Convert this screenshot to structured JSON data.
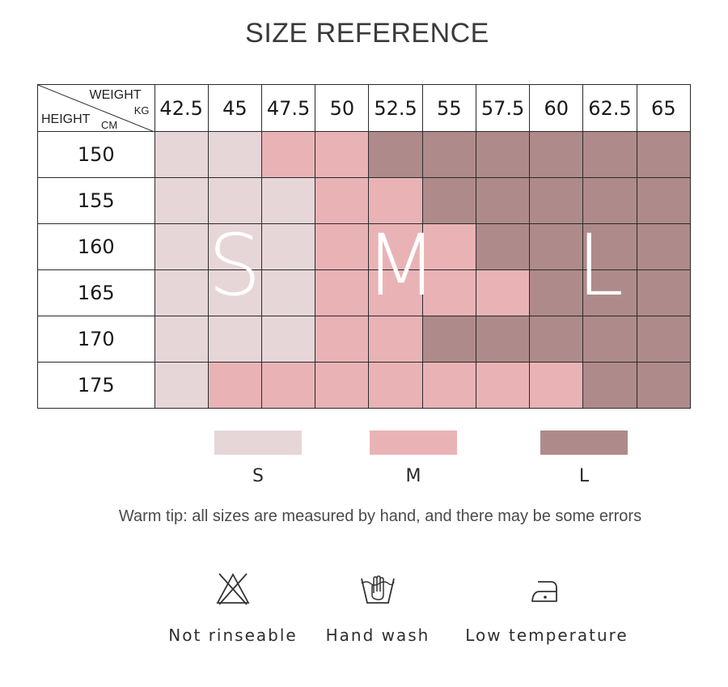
{
  "title": "SIZE REFERENCE",
  "table": {
    "corner": {
      "weight_label": "WEIGHT",
      "weight_unit": "KG",
      "height_label": "HEIGHT",
      "height_unit": "CM"
    },
    "weights": [
      "42.5",
      "45",
      "47.5",
      "50",
      "52.5",
      "55",
      "57.5",
      "60",
      "62.5",
      "65"
    ],
    "rows": [
      {
        "height": "150",
        "sizes": [
          "S",
          "S",
          "M",
          "M",
          "L",
          "L",
          "L",
          "L",
          "L",
          "L"
        ]
      },
      {
        "height": "155",
        "sizes": [
          "S",
          "S",
          "S",
          "M",
          "M",
          "L",
          "L",
          "L",
          "L",
          "L"
        ]
      },
      {
        "height": "160",
        "sizes": [
          "S",
          "S",
          "S",
          "M",
          "M",
          "M",
          "L",
          "L",
          "L",
          "L"
        ]
      },
      {
        "height": "165",
        "sizes": [
          "S",
          "S",
          "S",
          "M",
          "M",
          "M",
          "M",
          "L",
          "L",
          "L"
        ]
      },
      {
        "height": "170",
        "sizes": [
          "S",
          "S",
          "S",
          "M",
          "M",
          "L",
          "L",
          "L",
          "L",
          "L"
        ]
      },
      {
        "height": "175",
        "sizes": [
          "S",
          "M",
          "M",
          "M",
          "M",
          "M",
          "M",
          "M",
          "L",
          "L"
        ]
      }
    ],
    "overlay_labels": {
      "s": "S",
      "m": "M",
      "l": "L"
    }
  },
  "colors": {
    "S": "#e7d6d8",
    "M": "#e9b3b6",
    "L": "#ae8b8a"
  },
  "legend": [
    {
      "label": "S",
      "color": "#e7d6d8"
    },
    {
      "label": "M",
      "color": "#e9b3b6"
    },
    {
      "label": "L",
      "color": "#ae8b8a"
    }
  ],
  "tip": "Warm tip: all sizes are measured by hand, and there may be some errors",
  "care": [
    {
      "icon": "no-bleach-icon",
      "label": "Not rinseable"
    },
    {
      "icon": "hand-wash-icon",
      "label": "Hand wash"
    },
    {
      "icon": "low-temperature-iron-icon",
      "label": "Low temperature"
    }
  ]
}
